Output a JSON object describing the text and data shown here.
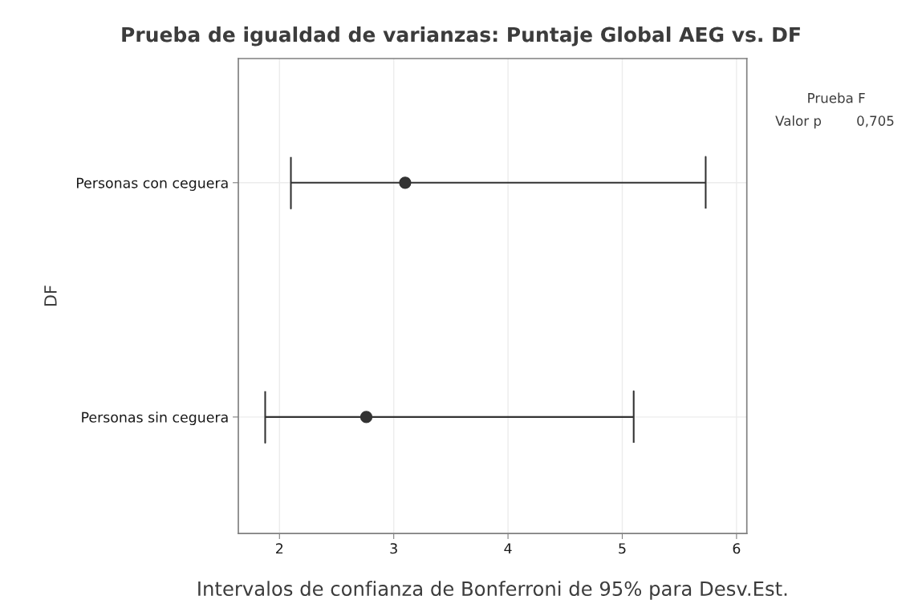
{
  "chart_data": {
    "type": "scatter",
    "orientation": "horizontal",
    "title": "Prueba de igualdad de varianzas: Puntaje Global AEG vs. DF",
    "xlabel": "Intervalos de confianza de Bonferroni de 95% para Desv.Est.",
    "ylabel": "DF",
    "categories": [
      "Personas con ceguera",
      "Personas sin ceguera"
    ],
    "values": [
      3.1,
      2.76
    ],
    "errors": [
      [
        2.1,
        5.73
      ],
      [
        1.875,
        5.1
      ]
    ],
    "color": "#333333",
    "marker": "circle",
    "xlim": [
      1.64,
      6.09
    ],
    "xticks": [
      2,
      3,
      4,
      5,
      6
    ],
    "grid": true,
    "annotations": [
      "Prueba F",
      "Valor p",
      "0,705"
    ]
  }
}
